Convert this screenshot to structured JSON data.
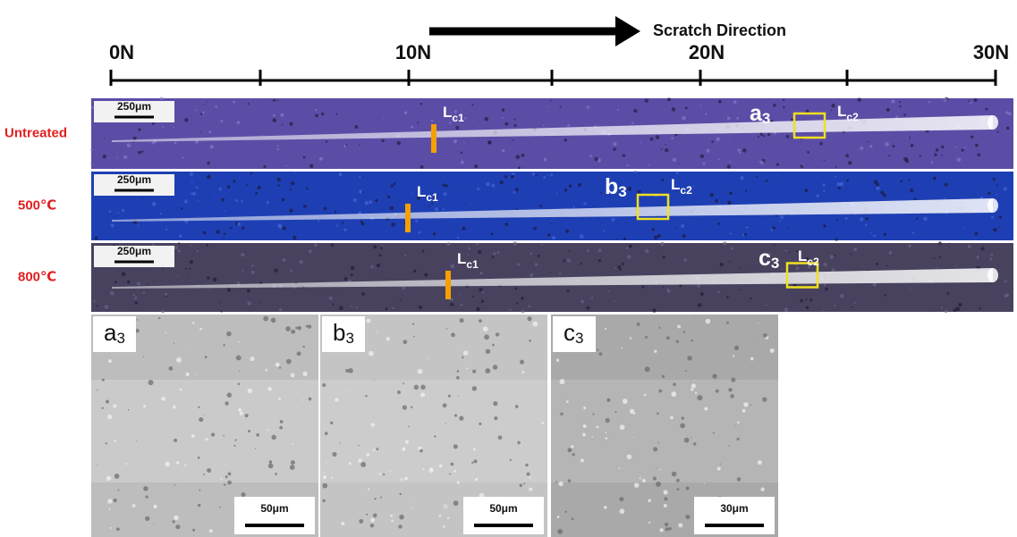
{
  "axis": {
    "labels": [
      "0N",
      "10N",
      "20N",
      "30N"
    ],
    "direction_label": "Scratch Direction"
  },
  "rows": [
    {
      "label": "Untreated",
      "scale_bar": "250μm",
      "lc1": {
        "main": "L",
        "sub": "c1"
      },
      "lc2": {
        "main": "L",
        "sub": "c2"
      },
      "region": {
        "main": "a",
        "sub": "3"
      }
    },
    {
      "label": "500℃",
      "scale_bar": "250μm",
      "lc1": {
        "main": "L",
        "sub": "c1"
      },
      "lc2": {
        "main": "L",
        "sub": "c2"
      },
      "region": {
        "main": "b",
        "sub": "3"
      }
    },
    {
      "label": "800℃",
      "scale_bar": "250μm",
      "lc1": {
        "main": "L",
        "sub": "c1"
      },
      "lc2": {
        "main": "L",
        "sub": "c2"
      },
      "region": {
        "main": "c",
        "sub": "3"
      }
    }
  ],
  "micrographs": [
    {
      "label": {
        "main": "a",
        "sub": "3"
      },
      "scale_bar": "50μm"
    },
    {
      "label": {
        "main": "b",
        "sub": "3"
      },
      "scale_bar": "50μm"
    },
    {
      "label": {
        "main": "c",
        "sub": "3"
      },
      "scale_bar": "30μm"
    }
  ]
}
